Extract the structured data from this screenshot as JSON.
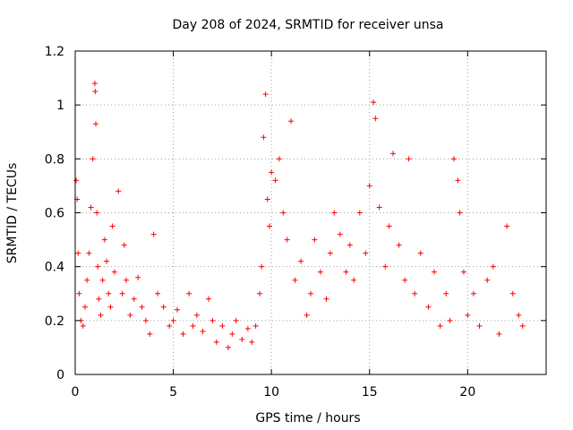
{
  "chart_data": {
    "type": "scatter",
    "title": "Day 208 of 2024, SRMTID for receiver unsa",
    "xlabel": "GPS time / hours",
    "ylabel": "SRMTID / TECUs",
    "xlim": [
      0,
      24
    ],
    "ylim": [
      0,
      1.2
    ],
    "xticks": [
      0,
      5,
      10,
      15,
      20
    ],
    "xtick_labels": [
      "0",
      "5",
      "10",
      "15",
      "20"
    ],
    "yticks": [
      0,
      0.2,
      0.4,
      0.6,
      0.8,
      1.0,
      1.2
    ],
    "ytick_labels": [
      "0",
      "0.2",
      "0.4",
      "0.6",
      "0.8",
      "1",
      "1.2"
    ],
    "grid": true,
    "marker": "+",
    "color": "#ff0000",
    "series": [
      {
        "name": "SRMTID",
        "x": [
          0.05,
          0.1,
          0.15,
          0.2,
          0.3,
          0.4,
          0.5,
          0.6,
          0.7,
          0.8,
          0.9,
          1.0,
          1.02,
          1.05,
          1.1,
          1.15,
          1.2,
          1.3,
          1.4,
          1.5,
          1.6,
          1.7,
          1.8,
          1.9,
          2.0,
          2.2,
          2.4,
          2.5,
          2.6,
          2.8,
          3.0,
          3.2,
          3.4,
          3.6,
          3.8,
          4.0,
          4.2,
          4.5,
          4.8,
          5.0,
          5.2,
          5.5,
          5.8,
          6.0,
          6.2,
          6.5,
          6.8,
          7.0,
          7.2,
          7.5,
          7.8,
          8.0,
          8.2,
          8.5,
          8.8,
          9.0,
          9.2,
          9.4,
          9.5,
          9.6,
          9.7,
          9.8,
          9.9,
          10.0,
          10.2,
          10.4,
          10.6,
          10.8,
          11.0,
          11.2,
          11.5,
          11.8,
          12.0,
          12.2,
          12.5,
          12.8,
          13.0,
          13.2,
          13.5,
          13.8,
          14.0,
          14.2,
          14.5,
          14.8,
          15.0,
          15.2,
          15.3,
          15.5,
          15.8,
          16.0,
          16.2,
          16.5,
          16.8,
          17.0,
          17.3,
          17.6,
          18.0,
          18.3,
          18.6,
          18.9,
          19.1,
          19.3,
          19.5,
          19.6,
          19.8,
          20.0,
          20.3,
          20.6,
          21.0,
          21.3,
          21.6,
          22.0,
          22.3,
          22.6,
          22.8
        ],
        "y": [
          0.72,
          0.65,
          0.45,
          0.3,
          0.2,
          0.18,
          0.25,
          0.35,
          0.45,
          0.62,
          0.8,
          1.08,
          1.05,
          0.93,
          0.6,
          0.4,
          0.28,
          0.22,
          0.35,
          0.5,
          0.42,
          0.3,
          0.25,
          0.55,
          0.38,
          0.68,
          0.3,
          0.48,
          0.35,
          0.22,
          0.28,
          0.36,
          0.25,
          0.2,
          0.15,
          0.52,
          0.3,
          0.25,
          0.18,
          0.2,
          0.24,
          0.15,
          0.3,
          0.18,
          0.22,
          0.16,
          0.28,
          0.2,
          0.12,
          0.18,
          0.1,
          0.15,
          0.2,
          0.13,
          0.17,
          0.12,
          0.18,
          0.3,
          0.4,
          0.88,
          1.04,
          0.65,
          0.55,
          0.75,
          0.72,
          0.8,
          0.6,
          0.5,
          0.94,
          0.35,
          0.42,
          0.22,
          0.3,
          0.5,
          0.38,
          0.28,
          0.45,
          0.6,
          0.52,
          0.38,
          0.48,
          0.35,
          0.6,
          0.45,
          0.7,
          1.01,
          0.95,
          0.62,
          0.4,
          0.55,
          0.82,
          0.48,
          0.35,
          0.8,
          0.3,
          0.45,
          0.25,
          0.38,
          0.18,
          0.3,
          0.2,
          0.8,
          0.72,
          0.6,
          0.38,
          0.22,
          0.3,
          0.18,
          0.35,
          0.4,
          0.15,
          0.55,
          0.3,
          0.22,
          0.18
        ]
      }
    ]
  }
}
